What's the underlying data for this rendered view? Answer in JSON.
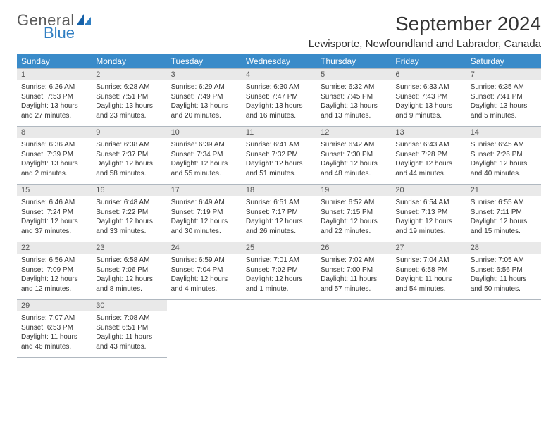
{
  "logo": {
    "text1": "General",
    "text2": "Blue"
  },
  "title": "September 2024",
  "location": "Lewisporte, Newfoundland and Labrador, Canada",
  "day_headers": [
    "Sunday",
    "Monday",
    "Tuesday",
    "Wednesday",
    "Thursday",
    "Friday",
    "Saturday"
  ],
  "colors": {
    "header_bg": "#3a8bc9",
    "header_text": "#ffffff",
    "daynum_bg": "#e9e9e9",
    "border": "#b0b8c0",
    "text": "#333333",
    "logo_gray": "#5a5a5a",
    "logo_blue": "#2f7ec2"
  },
  "typography": {
    "title_fontsize": 28,
    "location_fontsize": 15,
    "header_fontsize": 12,
    "daynum_fontsize": 11,
    "cell_fontsize": 10
  },
  "weeks": [
    [
      {
        "n": "1",
        "sr": "Sunrise: 6:26 AM",
        "ss": "Sunset: 7:53 PM",
        "d1": "Daylight: 13 hours",
        "d2": "and 27 minutes."
      },
      {
        "n": "2",
        "sr": "Sunrise: 6:28 AM",
        "ss": "Sunset: 7:51 PM",
        "d1": "Daylight: 13 hours",
        "d2": "and 23 minutes."
      },
      {
        "n": "3",
        "sr": "Sunrise: 6:29 AM",
        "ss": "Sunset: 7:49 PM",
        "d1": "Daylight: 13 hours",
        "d2": "and 20 minutes."
      },
      {
        "n": "4",
        "sr": "Sunrise: 6:30 AM",
        "ss": "Sunset: 7:47 PM",
        "d1": "Daylight: 13 hours",
        "d2": "and 16 minutes."
      },
      {
        "n": "5",
        "sr": "Sunrise: 6:32 AM",
        "ss": "Sunset: 7:45 PM",
        "d1": "Daylight: 13 hours",
        "d2": "and 13 minutes."
      },
      {
        "n": "6",
        "sr": "Sunrise: 6:33 AM",
        "ss": "Sunset: 7:43 PM",
        "d1": "Daylight: 13 hours",
        "d2": "and 9 minutes."
      },
      {
        "n": "7",
        "sr": "Sunrise: 6:35 AM",
        "ss": "Sunset: 7:41 PM",
        "d1": "Daylight: 13 hours",
        "d2": "and 5 minutes."
      }
    ],
    [
      {
        "n": "8",
        "sr": "Sunrise: 6:36 AM",
        "ss": "Sunset: 7:39 PM",
        "d1": "Daylight: 13 hours",
        "d2": "and 2 minutes."
      },
      {
        "n": "9",
        "sr": "Sunrise: 6:38 AM",
        "ss": "Sunset: 7:37 PM",
        "d1": "Daylight: 12 hours",
        "d2": "and 58 minutes."
      },
      {
        "n": "10",
        "sr": "Sunrise: 6:39 AM",
        "ss": "Sunset: 7:34 PM",
        "d1": "Daylight: 12 hours",
        "d2": "and 55 minutes."
      },
      {
        "n": "11",
        "sr": "Sunrise: 6:41 AM",
        "ss": "Sunset: 7:32 PM",
        "d1": "Daylight: 12 hours",
        "d2": "and 51 minutes."
      },
      {
        "n": "12",
        "sr": "Sunrise: 6:42 AM",
        "ss": "Sunset: 7:30 PM",
        "d1": "Daylight: 12 hours",
        "d2": "and 48 minutes."
      },
      {
        "n": "13",
        "sr": "Sunrise: 6:43 AM",
        "ss": "Sunset: 7:28 PM",
        "d1": "Daylight: 12 hours",
        "d2": "and 44 minutes."
      },
      {
        "n": "14",
        "sr": "Sunrise: 6:45 AM",
        "ss": "Sunset: 7:26 PM",
        "d1": "Daylight: 12 hours",
        "d2": "and 40 minutes."
      }
    ],
    [
      {
        "n": "15",
        "sr": "Sunrise: 6:46 AM",
        "ss": "Sunset: 7:24 PM",
        "d1": "Daylight: 12 hours",
        "d2": "and 37 minutes."
      },
      {
        "n": "16",
        "sr": "Sunrise: 6:48 AM",
        "ss": "Sunset: 7:22 PM",
        "d1": "Daylight: 12 hours",
        "d2": "and 33 minutes."
      },
      {
        "n": "17",
        "sr": "Sunrise: 6:49 AM",
        "ss": "Sunset: 7:19 PM",
        "d1": "Daylight: 12 hours",
        "d2": "and 30 minutes."
      },
      {
        "n": "18",
        "sr": "Sunrise: 6:51 AM",
        "ss": "Sunset: 7:17 PM",
        "d1": "Daylight: 12 hours",
        "d2": "and 26 minutes."
      },
      {
        "n": "19",
        "sr": "Sunrise: 6:52 AM",
        "ss": "Sunset: 7:15 PM",
        "d1": "Daylight: 12 hours",
        "d2": "and 22 minutes."
      },
      {
        "n": "20",
        "sr": "Sunrise: 6:54 AM",
        "ss": "Sunset: 7:13 PM",
        "d1": "Daylight: 12 hours",
        "d2": "and 19 minutes."
      },
      {
        "n": "21",
        "sr": "Sunrise: 6:55 AM",
        "ss": "Sunset: 7:11 PM",
        "d1": "Daylight: 12 hours",
        "d2": "and 15 minutes."
      }
    ],
    [
      {
        "n": "22",
        "sr": "Sunrise: 6:56 AM",
        "ss": "Sunset: 7:09 PM",
        "d1": "Daylight: 12 hours",
        "d2": "and 12 minutes."
      },
      {
        "n": "23",
        "sr": "Sunrise: 6:58 AM",
        "ss": "Sunset: 7:06 PM",
        "d1": "Daylight: 12 hours",
        "d2": "and 8 minutes."
      },
      {
        "n": "24",
        "sr": "Sunrise: 6:59 AM",
        "ss": "Sunset: 7:04 PM",
        "d1": "Daylight: 12 hours",
        "d2": "and 4 minutes."
      },
      {
        "n": "25",
        "sr": "Sunrise: 7:01 AM",
        "ss": "Sunset: 7:02 PM",
        "d1": "Daylight: 12 hours",
        "d2": "and 1 minute."
      },
      {
        "n": "26",
        "sr": "Sunrise: 7:02 AM",
        "ss": "Sunset: 7:00 PM",
        "d1": "Daylight: 11 hours",
        "d2": "and 57 minutes."
      },
      {
        "n": "27",
        "sr": "Sunrise: 7:04 AM",
        "ss": "Sunset: 6:58 PM",
        "d1": "Daylight: 11 hours",
        "d2": "and 54 minutes."
      },
      {
        "n": "28",
        "sr": "Sunrise: 7:05 AM",
        "ss": "Sunset: 6:56 PM",
        "d1": "Daylight: 11 hours",
        "d2": "and 50 minutes."
      }
    ],
    [
      {
        "n": "29",
        "sr": "Sunrise: 7:07 AM",
        "ss": "Sunset: 6:53 PM",
        "d1": "Daylight: 11 hours",
        "d2": "and 46 minutes."
      },
      {
        "n": "30",
        "sr": "Sunrise: 7:08 AM",
        "ss": "Sunset: 6:51 PM",
        "d1": "Daylight: 11 hours",
        "d2": "and 43 minutes."
      },
      null,
      null,
      null,
      null,
      null
    ]
  ]
}
